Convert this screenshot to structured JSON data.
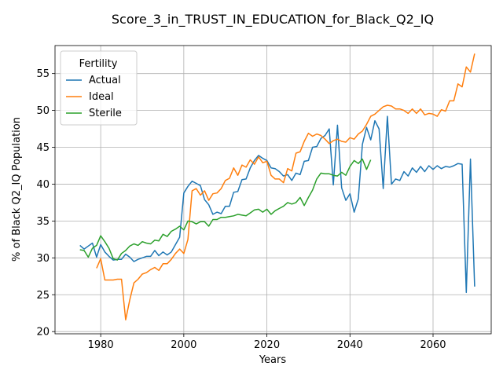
{
  "chart_data": {
    "type": "line",
    "title": "Score_3_in_TRUST_IN_EDUCATION_for_Black_Q2_IQ",
    "xlabel": "Years",
    "ylabel": "% of Black Q2_IQ Population",
    "xlim": [
      1969,
      2074
    ],
    "ylim": [
      19.7,
      58.8
    ],
    "xticks": [
      1980,
      2000,
      2020,
      2040,
      2060
    ],
    "yticks": [
      20,
      25,
      30,
      35,
      40,
      45,
      50,
      55
    ],
    "grid": true,
    "legend": {
      "title": "Fertility",
      "position": "top-left"
    },
    "series": [
      {
        "name": "Actual",
        "color": "#1f77b4",
        "x": [
          1975,
          1976,
          1977,
          1978,
          1979,
          1980,
          1981,
          1982,
          1983,
          1984,
          1985,
          1986,
          1987,
          1988,
          1989,
          1990,
          1991,
          1992,
          1993,
          1994,
          1995,
          1996,
          1997,
          1998,
          1999,
          2000,
          2001,
          2002,
          2003,
          2004,
          2005,
          2006,
          2007,
          2008,
          2009,
          2010,
          2011,
          2012,
          2013,
          2014,
          2015,
          2016,
          2017,
          2018,
          2019,
          2020,
          2021,
          2022,
          2023,
          2024,
          2025,
          2026,
          2027,
          2028,
          2029,
          2030,
          2031,
          2032,
          2033,
          2034,
          2035,
          2036,
          2037,
          2038,
          2039,
          2040,
          2041,
          2042,
          2043,
          2044,
          2045,
          2046,
          2047,
          2048,
          2049,
          2050,
          2051,
          2052,
          2053,
          2054,
          2055,
          2056,
          2057,
          2058,
          2059,
          2060,
          2061,
          2062,
          2063,
          2064,
          2065,
          2066,
          2067,
          2068,
          2069,
          2070
        ],
        "y": [
          31.7,
          31.2,
          31.6,
          32.0,
          30.1,
          31.8,
          30.8,
          30.2,
          29.7,
          29.8,
          29.8,
          30.5,
          30.1,
          29.5,
          29.8,
          30.0,
          30.2,
          30.2,
          31.0,
          30.3,
          30.8,
          30.4,
          30.8,
          31.8,
          32.8,
          38.8,
          39.7,
          40.4,
          40.1,
          39.8,
          37.9,
          37.2,
          35.9,
          36.2,
          36.0,
          37.0,
          37.0,
          38.9,
          39.0,
          40.6,
          40.7,
          42.2,
          43.2,
          43.9,
          43.5,
          43.2,
          42.2,
          42.1,
          41.7,
          41.1,
          41.3,
          40.5,
          41.5,
          41.3,
          43.1,
          43.2,
          45.0,
          45.1,
          46.2,
          46.6,
          47.5,
          39.9,
          48.0,
          39.5,
          37.8,
          38.7,
          36.2,
          38.0,
          45.4,
          47.7,
          46.0,
          48.6,
          47.5,
          39.4,
          49.2,
          40.0,
          40.7,
          40.5,
          41.7,
          41.1,
          42.2,
          41.6,
          42.4,
          41.7,
          42.5,
          42.0,
          42.5,
          42.1,
          42.4,
          42.3,
          42.5,
          42.8,
          42.7,
          25.3,
          43.4,
          26.1
        ]
      },
      {
        "name": "Ideal",
        "color": "#ff7f0e",
        "x": [
          1979,
          1980,
          1981,
          1982,
          1983,
          1984,
          1985,
          1986,
          1987,
          1988,
          1989,
          1990,
          1991,
          1992,
          1993,
          1994,
          1995,
          1996,
          1997,
          1998,
          1999,
          2000,
          2001,
          2002,
          2003,
          2004,
          2005,
          2006,
          2007,
          2008,
          2009,
          2010,
          2011,
          2012,
          2013,
          2014,
          2015,
          2016,
          2017,
          2018,
          2019,
          2020,
          2021,
          2022,
          2023,
          2024,
          2025,
          2026,
          2027,
          2028,
          2029,
          2030,
          2031,
          2032,
          2033,
          2034,
          2035,
          2036,
          2037,
          2038,
          2039,
          2040,
          2041,
          2042,
          2043,
          2044,
          2045,
          2046,
          2047,
          2048,
          2049,
          2050,
          2051,
          2052,
          2053,
          2054,
          2055,
          2056,
          2057,
          2058,
          2059,
          2060,
          2061,
          2062,
          2063,
          2064,
          2065,
          2066,
          2067,
          2068,
          2069,
          2070
        ],
        "y": [
          28.6,
          29.9,
          27.0,
          27.0,
          27.0,
          27.1,
          27.1,
          21.6,
          24.3,
          26.6,
          27.1,
          27.8,
          28.0,
          28.4,
          28.7,
          28.3,
          29.2,
          29.2,
          29.8,
          30.6,
          31.2,
          30.6,
          32.5,
          39.1,
          39.4,
          38.5,
          39.1,
          37.8,
          38.7,
          38.8,
          39.4,
          40.5,
          40.8,
          42.2,
          41.2,
          42.6,
          42.3,
          43.3,
          42.7,
          43.7,
          42.9,
          43.1,
          41.2,
          40.7,
          40.7,
          40.2,
          42.1,
          41.8,
          44.2,
          44.4,
          45.8,
          46.9,
          46.5,
          46.8,
          46.6,
          46.1,
          45.5,
          45.9,
          46.1,
          45.8,
          45.7,
          46.3,
          46.1,
          46.8,
          47.2,
          48.1,
          49.2,
          49.5,
          50.0,
          50.5,
          50.7,
          50.6,
          50.2,
          50.2,
          50.0,
          49.6,
          50.2,
          49.6,
          50.2,
          49.4,
          49.6,
          49.5,
          49.2,
          50.1,
          49.9,
          51.3,
          51.3,
          53.6,
          53.2,
          55.9,
          55.2,
          57.7
        ]
      },
      {
        "name": "Sterile",
        "color": "#2ca02c",
        "x": [
          1975,
          1976,
          1977,
          1978,
          1979,
          1980,
          1981,
          1982,
          1983,
          1984,
          1985,
          1986,
          1987,
          1988,
          1989,
          1990,
          1991,
          1992,
          1993,
          1994,
          1995,
          1996,
          1997,
          1998,
          1999,
          2000,
          2001,
          2002,
          2003,
          2004,
          2005,
          2006,
          2007,
          2008,
          2009,
          2010,
          2011,
          2012,
          2013,
          2014,
          2015,
          2016,
          2017,
          2018,
          2019,
          2020,
          2021,
          2022,
          2023,
          2024,
          2025,
          2026,
          2027,
          2028,
          2029,
          2030,
          2031,
          2032,
          2033,
          2034,
          2035,
          2036,
          2037,
          2038,
          2039,
          2040,
          2041,
          2042,
          2043,
          2044,
          2045
        ],
        "y": [
          31.1,
          31.0,
          30.1,
          31.3,
          31.7,
          33.0,
          32.2,
          31.3,
          29.9,
          29.7,
          30.6,
          31.0,
          31.6,
          31.9,
          31.7,
          32.2,
          32.0,
          31.9,
          32.4,
          32.3,
          33.2,
          32.9,
          33.6,
          33.9,
          34.3,
          33.8,
          35.0,
          34.9,
          34.6,
          34.9,
          34.9,
          34.3,
          35.2,
          35.2,
          35.5,
          35.5,
          35.6,
          35.7,
          35.9,
          35.8,
          35.7,
          36.1,
          36.5,
          36.6,
          36.2,
          36.6,
          35.9,
          36.4,
          36.7,
          37.0,
          37.5,
          37.3,
          37.5,
          38.2,
          37.1,
          38.2,
          39.2,
          40.7,
          41.5,
          41.4,
          41.4,
          41.2,
          41.1,
          41.6,
          41.2,
          42.4,
          43.2,
          42.8,
          43.4,
          42.0,
          43.3
        ]
      }
    ]
  }
}
